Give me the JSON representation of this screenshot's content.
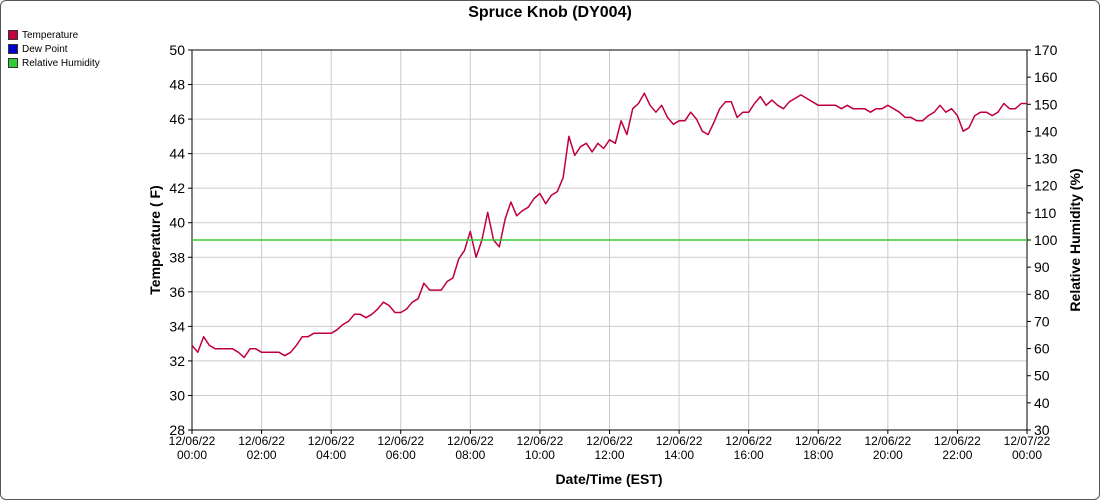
{
  "chart_data": {
    "type": "line",
    "title": "Spruce Knob (DY004)",
    "xlabel": "Date/Time (EST)",
    "ylabel": "Temperature ( F)",
    "y2label": "Relative Humidity (%)",
    "ylim": [
      28,
      50
    ],
    "y2lim": [
      30,
      170
    ],
    "yticks": [
      "28",
      "30",
      "32",
      "34",
      "36",
      "38",
      "40",
      "42",
      "44",
      "46",
      "48",
      "50"
    ],
    "y2ticks": [
      "30",
      "40",
      "50",
      "60",
      "70",
      "80",
      "90",
      "100",
      "110",
      "120",
      "130",
      "140",
      "150",
      "160",
      "170"
    ],
    "xticks": [
      {
        "date": "12/06/22",
        "time": "00:00"
      },
      {
        "date": "12/06/22",
        "time": "02:00"
      },
      {
        "date": "12/06/22",
        "time": "04:00"
      },
      {
        "date": "12/06/22",
        "time": "06:00"
      },
      {
        "date": "12/06/22",
        "time": "08:00"
      },
      {
        "date": "12/06/22",
        "time": "10:00"
      },
      {
        "date": "12/06/22",
        "time": "12:00"
      },
      {
        "date": "12/06/22",
        "time": "14:00"
      },
      {
        "date": "12/06/22",
        "time": "16:00"
      },
      {
        "date": "12/06/22",
        "time": "18:00"
      },
      {
        "date": "12/06/22",
        "time": "20:00"
      },
      {
        "date": "12/06/22",
        "time": "22:00"
      },
      {
        "date": "12/07/22",
        "time": "00:00"
      }
    ],
    "grid": true,
    "legend_position": "top-left",
    "series": [
      {
        "name": "Temperature",
        "color": "#c0003c",
        "axis": "left",
        "x": [
          "12/06/22 00:00",
          "12/06/22 00:10",
          "12/06/22 00:20",
          "12/06/22 00:30",
          "12/06/22 00:40",
          "12/06/22 00:50",
          "12/06/22 01:00",
          "12/06/22 01:10",
          "12/06/22 01:20",
          "12/06/22 01:30",
          "12/06/22 01:40",
          "12/06/22 01:50",
          "12/06/22 02:00",
          "12/06/22 02:10",
          "12/06/22 02:20",
          "12/06/22 02:30",
          "12/06/22 02:40",
          "12/06/22 02:50",
          "12/06/22 03:00",
          "12/06/22 03:10",
          "12/06/22 03:20",
          "12/06/22 03:30",
          "12/06/22 03:40",
          "12/06/22 03:50",
          "12/06/22 04:00",
          "12/06/22 04:10",
          "12/06/22 04:20",
          "12/06/22 04:30",
          "12/06/22 04:40",
          "12/06/22 04:50",
          "12/06/22 05:00",
          "12/06/22 05:10",
          "12/06/22 05:20",
          "12/06/22 05:30",
          "12/06/22 05:40",
          "12/06/22 05:50",
          "12/06/22 06:00",
          "12/06/22 06:10",
          "12/06/22 06:20",
          "12/06/22 06:30",
          "12/06/22 06:40",
          "12/06/22 06:50",
          "12/06/22 07:00",
          "12/06/22 07:10",
          "12/06/22 07:20",
          "12/06/22 07:30",
          "12/06/22 07:40",
          "12/06/22 07:50",
          "12/06/22 08:00",
          "12/06/22 08:10",
          "12/06/22 08:20",
          "12/06/22 08:30",
          "12/06/22 08:40",
          "12/06/22 08:50",
          "12/06/22 09:00",
          "12/06/22 09:10",
          "12/06/22 09:20",
          "12/06/22 09:30",
          "12/06/22 09:40",
          "12/06/22 09:50",
          "12/06/22 10:00",
          "12/06/22 10:10",
          "12/06/22 10:20",
          "12/06/22 10:30",
          "12/06/22 10:40",
          "12/06/22 10:50",
          "12/06/22 11:00",
          "12/06/22 11:10",
          "12/06/22 11:20",
          "12/06/22 11:30",
          "12/06/22 11:40",
          "12/06/22 11:50",
          "12/06/22 12:00",
          "12/06/22 12:10",
          "12/06/22 12:20",
          "12/06/22 12:30",
          "12/06/22 12:40",
          "12/06/22 12:50",
          "12/06/22 13:00",
          "12/06/22 13:10",
          "12/06/22 13:20",
          "12/06/22 13:30",
          "12/06/22 13:40",
          "12/06/22 13:50",
          "12/06/22 14:00",
          "12/06/22 14:10",
          "12/06/22 14:20",
          "12/06/22 14:30",
          "12/06/22 14:40",
          "12/06/22 14:50",
          "12/06/22 15:00",
          "12/06/22 15:10",
          "12/06/22 15:20",
          "12/06/22 15:30",
          "12/06/22 15:40",
          "12/06/22 15:50",
          "12/06/22 16:00",
          "12/06/22 16:10",
          "12/06/22 16:20",
          "12/06/22 16:30",
          "12/06/22 16:40",
          "12/06/22 16:50",
          "12/06/22 17:00",
          "12/06/22 17:10",
          "12/06/22 17:20",
          "12/06/22 17:30",
          "12/06/22 17:40",
          "12/06/22 17:50",
          "12/06/22 18:00",
          "12/06/22 18:10",
          "12/06/22 18:20",
          "12/06/22 18:30",
          "12/06/22 18:40",
          "12/06/22 18:50",
          "12/06/22 19:00",
          "12/06/22 19:10",
          "12/06/22 19:20",
          "12/06/22 19:30",
          "12/06/22 19:40",
          "12/06/22 19:50",
          "12/06/22 20:00",
          "12/06/22 20:10",
          "12/06/22 20:20",
          "12/06/22 20:30",
          "12/06/22 20:40",
          "12/06/22 20:50",
          "12/06/22 21:00",
          "12/06/22 21:10",
          "12/06/22 21:20",
          "12/06/22 21:30",
          "12/06/22 21:40",
          "12/06/22 21:50",
          "12/06/22 22:00",
          "12/06/22 22:10",
          "12/06/22 22:20",
          "12/06/22 22:30",
          "12/06/22 22:40",
          "12/06/22 22:50",
          "12/06/22 23:00",
          "12/06/22 23:10",
          "12/06/22 23:20",
          "12/06/22 23:30",
          "12/06/22 23:40",
          "12/06/22 23:50",
          "12/07/22 00:00"
        ],
        "values": [
          32.9,
          32.5,
          33.4,
          32.9,
          32.7,
          32.7,
          32.7,
          32.7,
          32.5,
          32.2,
          32.7,
          32.7,
          32.5,
          32.5,
          32.5,
          32.5,
          32.3,
          32.5,
          32.9,
          33.4,
          33.4,
          33.6,
          33.6,
          33.6,
          33.6,
          33.8,
          34.1,
          34.3,
          34.7,
          34.7,
          34.5,
          34.7,
          35.0,
          35.4,
          35.2,
          34.8,
          34.8,
          35.0,
          35.4,
          35.6,
          36.5,
          36.1,
          36.1,
          36.1,
          36.6,
          36.8,
          37.9,
          38.4,
          39.5,
          38.0,
          39.0,
          40.6,
          39.0,
          38.6,
          40.2,
          41.2,
          40.4,
          40.7,
          40.9,
          41.4,
          41.7,
          41.1,
          41.6,
          41.8,
          42.6,
          45.0,
          43.9,
          44.4,
          44.6,
          44.1,
          44.6,
          44.3,
          44.8,
          44.6,
          45.9,
          45.1,
          46.6,
          46.9,
          47.5,
          46.8,
          46.4,
          46.8,
          46.1,
          45.7,
          45.9,
          45.9,
          46.4,
          46.0,
          45.3,
          45.1,
          45.8,
          46.6,
          47.0,
          47.0,
          46.1,
          46.4,
          46.4,
          46.9,
          47.3,
          46.8,
          47.1,
          46.8,
          46.6,
          47.0,
          47.2,
          47.4,
          47.2,
          47.0,
          46.8,
          46.8,
          46.8,
          46.8,
          46.6,
          46.8,
          46.6,
          46.6,
          46.6,
          46.4,
          46.6,
          46.6,
          46.8,
          46.6,
          46.4,
          46.1,
          46.1,
          45.9,
          45.9,
          46.2,
          46.4,
          46.8,
          46.4,
          46.6,
          46.2,
          45.3,
          45.5,
          46.2,
          46.4,
          46.4,
          46.2,
          46.4,
          46.9,
          46.6,
          46.6,
          46.9,
          46.9
        ]
      },
      {
        "name": "Dew Point",
        "color": "#0000cc",
        "axis": "left",
        "values": []
      },
      {
        "name": "Relative Humidity",
        "color": "#33cc33",
        "axis": "right",
        "x": [
          "12/06/22 00:00",
          "12/07/22 00:00"
        ],
        "values": [
          100,
          100
        ]
      }
    ]
  }
}
